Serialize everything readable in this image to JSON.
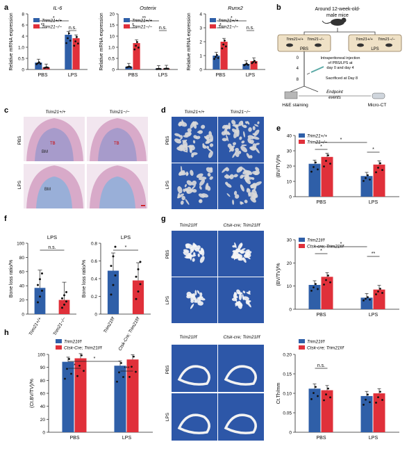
{
  "panels": {
    "a": "a",
    "b": "b",
    "c": "c",
    "d": "d",
    "e": "e",
    "f": "f",
    "g": "g",
    "h": "h"
  },
  "colors": {
    "wt": "#2f5fa8",
    "ko": "#e0303a",
    "bone_bg": "#2d57a8",
    "he_pink": "#d9a6c8"
  },
  "schematic": {
    "title_line1": "Around 12-week-old-",
    "title_line2": "male mice",
    "group_left_wt": "Trim21+/+",
    "group_left_ko": "Trim21−/−",
    "group_left_label": "PBS",
    "group_right_wt": "Trim21+/+",
    "group_right_ko": "Trim21−/−",
    "group_right_label": "LPS",
    "timeline_0": "0",
    "timeline_4": "4",
    "timeline_8": "8",
    "inj_line1": "Intraperitoneal injection",
    "inj_line2": "of PBS/LPS at",
    "inj_line3": "day 0 and day 4",
    "sac": "Sacrificed at Day 8",
    "endpoint1": "Endpoint",
    "endpoint2": "events",
    "he": "H&E staining",
    "ct": "Micro-CT"
  },
  "histology": {
    "col_wt": "Trim21+/+",
    "col_ko": "Trim21−/−",
    "row_pbs": "PBS",
    "row_lps": "LPS",
    "bm": "BM",
    "tb": "TB"
  },
  "microct_d": {
    "col_wt": "Trim21+/+",
    "col_ko": "Trim21−/−",
    "row_pbs": "PBS",
    "row_lps": "LPS"
  },
  "microct_g": {
    "col_wt": "Trim21f/f",
    "col_ko": "Ctsk-cre; Trim21f/f",
    "row_pbs": "PBS",
    "row_lps": "LPS"
  },
  "microct_h": {
    "col_wt": "Trim21f/f",
    "col_ko": "Ctsk-cre; Trim21f/f",
    "row_pbs": "PBS",
    "row_lps": "LPS"
  },
  "chart_data": [
    {
      "id": "a1",
      "type": "bar",
      "title": "IL-6",
      "ylabel": "Relative mRNA expression",
      "categories": [
        "PBS",
        "LPS"
      ],
      "series": [
        {
          "name": "Trim21+/+",
          "values": [
            1.0,
            5.0
          ]
        },
        {
          "name": "Trim21−/−",
          "values": [
            0.3,
            4.5
          ]
        }
      ],
      "ylim": [
        0,
        8
      ],
      "yticks": [
        "0",
        "0.5",
        "1.0",
        "4",
        "6",
        "8"
      ],
      "sig": [
        "**",
        "*",
        "n.s."
      ]
    },
    {
      "id": "a2",
      "type": "bar",
      "title": "Osterix",
      "ylabel": "Relative mRNA expression",
      "categories": [
        "PBS",
        "LPS"
      ],
      "series": [
        {
          "name": "Trim21+/+",
          "values": [
            1.0,
            0.2
          ]
        },
        {
          "name": "Trim21−/−",
          "values": [
            9.5,
            0.3
          ]
        }
      ],
      "ylim": [
        0,
        20
      ],
      "yticks": [
        "0",
        "0.5",
        "1.0",
        "10",
        "15",
        "20"
      ],
      "sig": [
        "*",
        "**",
        "n.s."
      ]
    },
    {
      "id": "a3",
      "type": "bar",
      "title": "Runx2",
      "ylabel": "Relative mRNA expression",
      "categories": [
        "PBS",
        "LPS"
      ],
      "series": [
        {
          "name": "Trim21+/+",
          "values": [
            1.0,
            0.4
          ]
        },
        {
          "name": "Trim21−/−",
          "values": [
            2.0,
            0.6
          ]
        }
      ],
      "ylim": [
        0,
        4
      ],
      "yticks": [
        "0",
        "1",
        "2",
        "3",
        "4"
      ],
      "sig": [
        "*",
        "*",
        "n.s."
      ]
    },
    {
      "id": "e",
      "type": "bar",
      "ylabel": "(BV/TV)/%",
      "categories": [
        "PBS",
        "LPS"
      ],
      "series": [
        {
          "name": "Trim21+/+",
          "values": [
            21.5,
            13.5
          ]
        },
        {
          "name": "Trim21−/−",
          "values": [
            26,
            21
          ]
        }
      ],
      "ylim": [
        0,
        40
      ],
      "yticks": [
        "0",
        "10",
        "20",
        "30",
        "40"
      ],
      "sig": [
        "*",
        "*",
        "*"
      ]
    },
    {
      "id": "f1",
      "type": "bar",
      "title": "LPS",
      "ylabel": "Bone loss ratio/%",
      "categories": [
        "Trim21+/+",
        "Trim21−/−"
      ],
      "values": [
        37,
        20
      ],
      "ylim": [
        0,
        100
      ],
      "yticks": [
        "0",
        "20",
        "40",
        "60",
        "80",
        "100"
      ],
      "sig": [
        "n.s."
      ]
    },
    {
      "id": "f2",
      "type": "bar",
      "title": "LPS",
      "ylabel": "Bone loss ratio/%",
      "categories": [
        "Trim21f/f",
        "Ctsk-Cre; Trim21f/f"
      ],
      "values": [
        0.49,
        0.38
      ],
      "ylim": [
        0,
        0.8
      ],
      "yticks": [
        "0",
        "0.2",
        "0.4",
        "0.6",
        "0.8"
      ],
      "sig": [
        "*"
      ]
    },
    {
      "id": "g",
      "type": "bar",
      "ylabel": "(BV/TV)/%",
      "categories": [
        "PBS",
        "LPS"
      ],
      "series": [
        {
          "name": "Trim21f/f",
          "values": [
            10.5,
            5.0
          ]
        },
        {
          "name": "Ctsk-cre; Trim21f/f",
          "values": [
            14,
            8.5
          ]
        }
      ],
      "ylim": [
        0,
        30
      ],
      "yticks": [
        "0",
        "10",
        "20",
        "30"
      ],
      "sig": [
        "*",
        "*",
        "**"
      ]
    },
    {
      "id": "h1",
      "type": "bar",
      "ylabel": "(Ct.BV/TV)/%",
      "categories": [
        "PBS",
        "LPS"
      ],
      "series": [
        {
          "name": "Trim21f/f",
          "values": [
            90.5,
            85.5
          ]
        },
        {
          "name": "Ctsk-Cre; Trim21f/f",
          "values": [
            95,
            93.5
          ]
        }
      ],
      "ylim": [
        0,
        100
      ],
      "yticks": [
        "0",
        "20",
        "40",
        "60",
        "80",
        "90",
        "100"
      ],
      "sig": [
        "*",
        "*",
        "***"
      ]
    },
    {
      "id": "h2",
      "type": "bar",
      "ylabel": "Ct.Th/mm",
      "categories": [
        "PBS",
        "LPS"
      ],
      "series": [
        {
          "name": "Trim21f/f",
          "values": [
            0.112,
            0.093
          ]
        },
        {
          "name": "Ctsk-cre; Trim21f/f",
          "values": [
            0.108,
            0.1
          ]
        }
      ],
      "ylim": [
        0,
        0.2
      ],
      "yticks": [
        "0",
        "0.05",
        "0.10",
        "0.15",
        "0.20"
      ],
      "sig": [
        "n.s."
      ]
    }
  ]
}
